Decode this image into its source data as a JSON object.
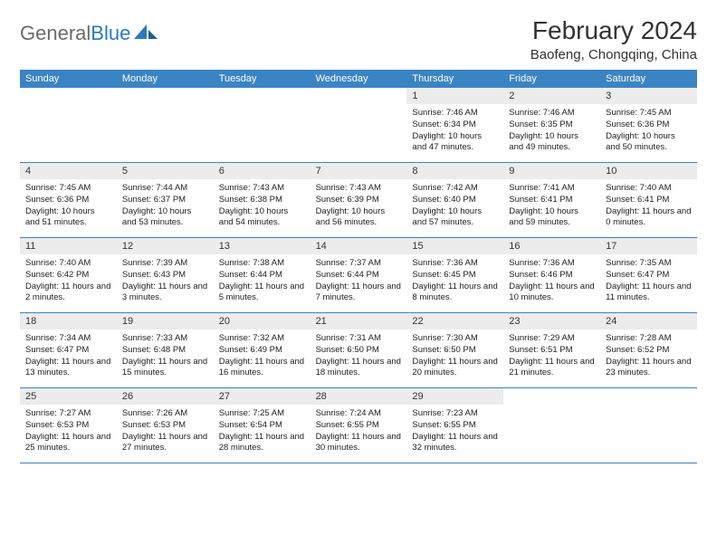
{
  "brand": {
    "name_gray": "General",
    "name_blue": "Blue"
  },
  "title": "February 2024",
  "location": "Baofeng, Chongqing, China",
  "colors": {
    "header_bg": "#3b84c4",
    "header_text": "#ffffff",
    "daynum_bg": "#ececec",
    "border": "#3b84c4",
    "body_text": "#222222",
    "title_text": "#333333",
    "logo_gray": "#6a6a6a",
    "logo_blue": "#2b7bbf",
    "page_bg": "#ffffff"
  },
  "weekdays": [
    "Sunday",
    "Monday",
    "Tuesday",
    "Wednesday",
    "Thursday",
    "Friday",
    "Saturday"
  ],
  "weeks": [
    [
      {
        "n": "",
        "sr": "",
        "ss": "",
        "dl": ""
      },
      {
        "n": "",
        "sr": "",
        "ss": "",
        "dl": ""
      },
      {
        "n": "",
        "sr": "",
        "ss": "",
        "dl": ""
      },
      {
        "n": "",
        "sr": "",
        "ss": "",
        "dl": ""
      },
      {
        "n": "1",
        "sr": "Sunrise: 7:46 AM",
        "ss": "Sunset: 6:34 PM",
        "dl": "Daylight: 10 hours and 47 minutes."
      },
      {
        "n": "2",
        "sr": "Sunrise: 7:46 AM",
        "ss": "Sunset: 6:35 PM",
        "dl": "Daylight: 10 hours and 49 minutes."
      },
      {
        "n": "3",
        "sr": "Sunrise: 7:45 AM",
        "ss": "Sunset: 6:36 PM",
        "dl": "Daylight: 10 hours and 50 minutes."
      }
    ],
    [
      {
        "n": "4",
        "sr": "Sunrise: 7:45 AM",
        "ss": "Sunset: 6:36 PM",
        "dl": "Daylight: 10 hours and 51 minutes."
      },
      {
        "n": "5",
        "sr": "Sunrise: 7:44 AM",
        "ss": "Sunset: 6:37 PM",
        "dl": "Daylight: 10 hours and 53 minutes."
      },
      {
        "n": "6",
        "sr": "Sunrise: 7:43 AM",
        "ss": "Sunset: 6:38 PM",
        "dl": "Daylight: 10 hours and 54 minutes."
      },
      {
        "n": "7",
        "sr": "Sunrise: 7:43 AM",
        "ss": "Sunset: 6:39 PM",
        "dl": "Daylight: 10 hours and 56 minutes."
      },
      {
        "n": "8",
        "sr": "Sunrise: 7:42 AM",
        "ss": "Sunset: 6:40 PM",
        "dl": "Daylight: 10 hours and 57 minutes."
      },
      {
        "n": "9",
        "sr": "Sunrise: 7:41 AM",
        "ss": "Sunset: 6:41 PM",
        "dl": "Daylight: 10 hours and 59 minutes."
      },
      {
        "n": "10",
        "sr": "Sunrise: 7:40 AM",
        "ss": "Sunset: 6:41 PM",
        "dl": "Daylight: 11 hours and 0 minutes."
      }
    ],
    [
      {
        "n": "11",
        "sr": "Sunrise: 7:40 AM",
        "ss": "Sunset: 6:42 PM",
        "dl": "Daylight: 11 hours and 2 minutes."
      },
      {
        "n": "12",
        "sr": "Sunrise: 7:39 AM",
        "ss": "Sunset: 6:43 PM",
        "dl": "Daylight: 11 hours and 3 minutes."
      },
      {
        "n": "13",
        "sr": "Sunrise: 7:38 AM",
        "ss": "Sunset: 6:44 PM",
        "dl": "Daylight: 11 hours and 5 minutes."
      },
      {
        "n": "14",
        "sr": "Sunrise: 7:37 AM",
        "ss": "Sunset: 6:44 PM",
        "dl": "Daylight: 11 hours and 7 minutes."
      },
      {
        "n": "15",
        "sr": "Sunrise: 7:36 AM",
        "ss": "Sunset: 6:45 PM",
        "dl": "Daylight: 11 hours and 8 minutes."
      },
      {
        "n": "16",
        "sr": "Sunrise: 7:36 AM",
        "ss": "Sunset: 6:46 PM",
        "dl": "Daylight: 11 hours and 10 minutes."
      },
      {
        "n": "17",
        "sr": "Sunrise: 7:35 AM",
        "ss": "Sunset: 6:47 PM",
        "dl": "Daylight: 11 hours and 11 minutes."
      }
    ],
    [
      {
        "n": "18",
        "sr": "Sunrise: 7:34 AM",
        "ss": "Sunset: 6:47 PM",
        "dl": "Daylight: 11 hours and 13 minutes."
      },
      {
        "n": "19",
        "sr": "Sunrise: 7:33 AM",
        "ss": "Sunset: 6:48 PM",
        "dl": "Daylight: 11 hours and 15 minutes."
      },
      {
        "n": "20",
        "sr": "Sunrise: 7:32 AM",
        "ss": "Sunset: 6:49 PM",
        "dl": "Daylight: 11 hours and 16 minutes."
      },
      {
        "n": "21",
        "sr": "Sunrise: 7:31 AM",
        "ss": "Sunset: 6:50 PM",
        "dl": "Daylight: 11 hours and 18 minutes."
      },
      {
        "n": "22",
        "sr": "Sunrise: 7:30 AM",
        "ss": "Sunset: 6:50 PM",
        "dl": "Daylight: 11 hours and 20 minutes."
      },
      {
        "n": "23",
        "sr": "Sunrise: 7:29 AM",
        "ss": "Sunset: 6:51 PM",
        "dl": "Daylight: 11 hours and 21 minutes."
      },
      {
        "n": "24",
        "sr": "Sunrise: 7:28 AM",
        "ss": "Sunset: 6:52 PM",
        "dl": "Daylight: 11 hours and 23 minutes."
      }
    ],
    [
      {
        "n": "25",
        "sr": "Sunrise: 7:27 AM",
        "ss": "Sunset: 6:53 PM",
        "dl": "Daylight: 11 hours and 25 minutes."
      },
      {
        "n": "26",
        "sr": "Sunrise: 7:26 AM",
        "ss": "Sunset: 6:53 PM",
        "dl": "Daylight: 11 hours and 27 minutes."
      },
      {
        "n": "27",
        "sr": "Sunrise: 7:25 AM",
        "ss": "Sunset: 6:54 PM",
        "dl": "Daylight: 11 hours and 28 minutes."
      },
      {
        "n": "28",
        "sr": "Sunrise: 7:24 AM",
        "ss": "Sunset: 6:55 PM",
        "dl": "Daylight: 11 hours and 30 minutes."
      },
      {
        "n": "29",
        "sr": "Sunrise: 7:23 AM",
        "ss": "Sunset: 6:55 PM",
        "dl": "Daylight: 11 hours and 32 minutes."
      },
      {
        "n": "",
        "sr": "",
        "ss": "",
        "dl": ""
      },
      {
        "n": "",
        "sr": "",
        "ss": "",
        "dl": ""
      }
    ]
  ]
}
